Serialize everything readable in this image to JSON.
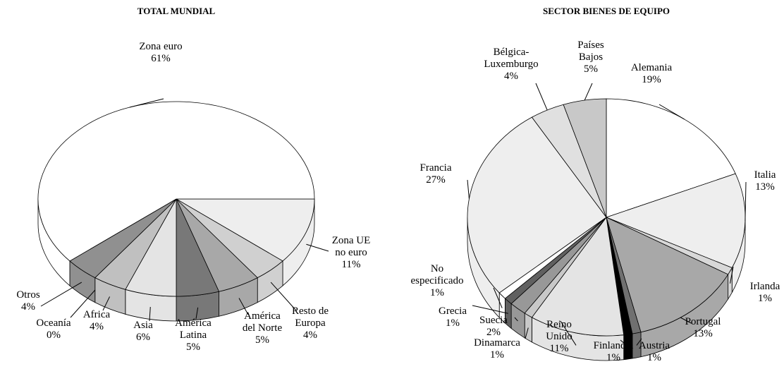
{
  "chart_data": [
    {
      "type": "pie3d",
      "title": "TOTAL MUNDIAL",
      "startangle": 0,
      "categories": [
        "Zona UE\nno euro",
        "Resto de\nEuropa",
        "América\ndel Norte",
        "América\nLatina",
        "Asia",
        "Africa",
        "Oceanía",
        "Otros",
        "Zona euro"
      ],
      "values": [
        11,
        4,
        5,
        5,
        6,
        4,
        0,
        4,
        61
      ],
      "value_labels": [
        "11%",
        "4%",
        "5%",
        "5%",
        "6%",
        "4%",
        "0%",
        "4%",
        "61%"
      ],
      "colors": [
        "#eeeeee",
        "#d0d0d0",
        "#a8a8a8",
        "#787878",
        "#e4e4e4",
        "#c0c0c0",
        "#b0b0b0",
        "#909090",
        "#ffffff"
      ]
    },
    {
      "type": "pie3d",
      "title": "SECTOR BIENES DE EQUIPO",
      "startangle": -90,
      "categories": [
        "Alemania",
        "Italia",
        "Irlanda",
        "Portugal",
        "Austria",
        "Finlandia",
        "Reino\nUnido",
        "Dinamarca",
        "Suecia",
        "Grecia",
        "No\nespecificado",
        "Francia",
        "Bélgica-\nLuxemburgo",
        "Países\nBajos"
      ],
      "values": [
        19,
        13,
        1,
        13,
        1,
        1,
        11,
        1,
        2,
        1,
        1,
        27,
        4,
        5
      ],
      "value_labels": [
        "19%",
        "13%",
        "1%",
        "13%",
        "1%",
        "1%",
        "11%",
        "1%",
        "2%",
        "1%",
        "1%",
        "27%",
        "4%",
        "5%"
      ],
      "colors": [
        "#ffffff",
        "#eeeeee",
        "#d8d8d8",
        "#a8a8a8",
        "#707070",
        "#000000",
        "#e4e4e4",
        "#c8c8c8",
        "#989898",
        "#606060",
        "#ffffff",
        "#eeeeee",
        "#e0e0e0",
        "#c8c8c8"
      ]
    }
  ]
}
